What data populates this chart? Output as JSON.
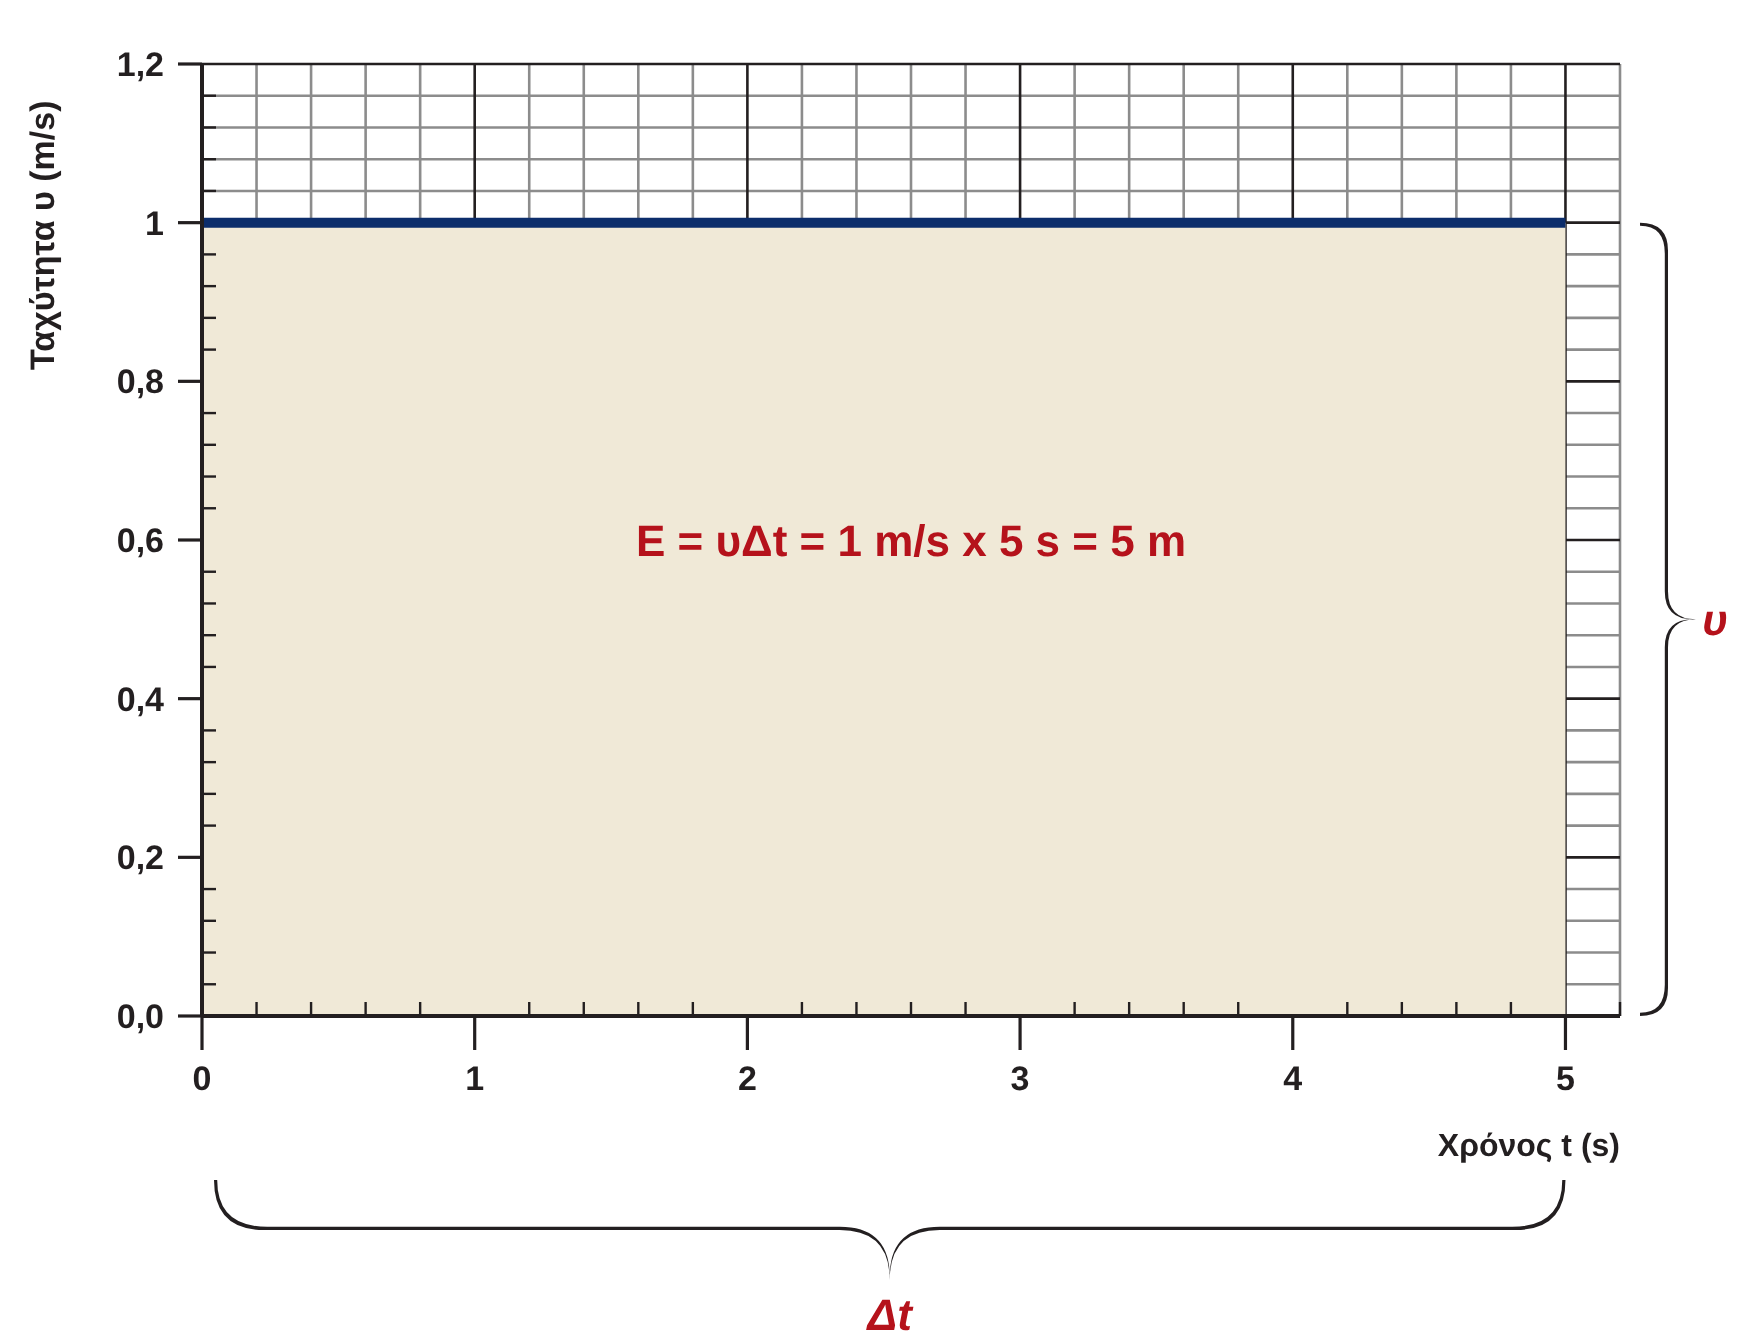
{
  "chart_data": {
    "type": "area",
    "xlabel": "Χρόνος t (s)",
    "ylabel": "Ταχύτητα υ (m/s)",
    "x": [
      0,
      5
    ],
    "series": [
      {
        "color": "#f0e9d7",
        "values": [
          1,
          1
        ]
      }
    ],
    "xlim": [
      0,
      5.2
    ],
    "ylim": [
      0,
      1.2
    ],
    "xticks": [
      0,
      {
        "value": 0.2,
        "label": null
      },
      {
        "value": 0.4,
        "label": null
      },
      {
        "value": 0.6,
        "label": null
      },
      {
        "value": 0.8,
        "label": null
      },
      1,
      {
        "value": 1.2,
        "label": null
      },
      {
        "value": 1.4,
        "label": null
      },
      {
        "value": 1.6,
        "label": null
      },
      {
        "value": 1.8,
        "label": null
      },
      2,
      {
        "value": 2.2,
        "label": null
      },
      {
        "value": 2.4,
        "label": null
      },
      {
        "value": 2.6,
        "label": null
      },
      {
        "value": 2.8,
        "label": null
      },
      3,
      {
        "value": 3.2,
        "label": null
      },
      {
        "value": 3.4,
        "label": null
      },
      {
        "value": 3.6,
        "label": null
      },
      {
        "value": 3.8,
        "label": null
      },
      4,
      {
        "value": 4.2,
        "label": null
      },
      {
        "value": 4.4,
        "label": null
      },
      {
        "value": 4.6,
        "label": null
      },
      {
        "value": 4.8,
        "label": null
      },
      5,
      {
        "value": 5.2,
        "label": null
      }
    ],
    "yticks": [
      {
        "value": 0,
        "label": "0,0"
      },
      {
        "value": 0.04,
        "label": null
      },
      {
        "value": 0.08,
        "label": null
      },
      {
        "value": 0.12,
        "label": null
      },
      {
        "value": 0.16,
        "label": null
      },
      {
        "value": 0.2,
        "label": "0,2"
      },
      {
        "value": 0.24,
        "label": null
      },
      {
        "value": 0.28,
        "label": null
      },
      {
        "value": 0.32,
        "label": null
      },
      {
        "value": 0.36,
        "label": null
      },
      {
        "value": 0.4,
        "label": "0,4"
      },
      {
        "value": 0.44,
        "label": null
      },
      {
        "value": 0.48,
        "label": null
      },
      {
        "value": 0.52,
        "label": null
      },
      {
        "value": 0.56,
        "label": null
      },
      {
        "value": 0.6,
        "label": "0,6"
      },
      {
        "value": 0.64,
        "label": null
      },
      {
        "value": 0.68,
        "label": null
      },
      {
        "value": 0.72,
        "label": null
      },
      {
        "value": 0.76,
        "label": null
      },
      {
        "value": 0.8,
        "label": "0,8"
      },
      {
        "value": 0.84,
        "label": null
      },
      {
        "value": 0.88,
        "label": null
      },
      {
        "value": 0.92,
        "label": null
      },
      {
        "value": 0.96,
        "label": null
      },
      1,
      {
        "value": 1.04,
        "label": null
      },
      {
        "value": 1.08,
        "label": null
      },
      {
        "value": 1.12,
        "label": null
      },
      {
        "value": 1.16,
        "label": null
      },
      {
        "value": 1.2,
        "label": "1,2"
      }
    ],
    "grid": true,
    "annotations": [
      "E = υΔt = 1 m/s x 5 s = 5 m",
      "υ",
      "Δt"
    ]
  }
}
